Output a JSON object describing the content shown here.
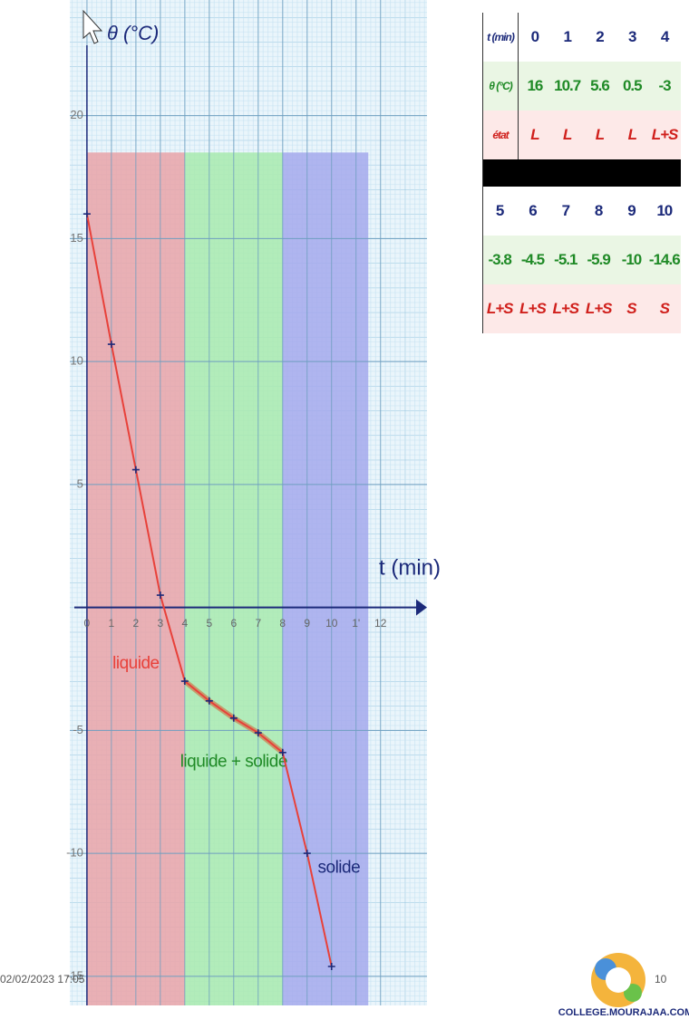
{
  "chart_data": {
    "type": "line",
    "y_label": "θ (°C)",
    "x_label": "t (min)",
    "x": [
      0,
      1,
      2,
      3,
      4,
      5,
      6,
      7,
      8,
      9,
      10
    ],
    "values": [
      16,
      10.7,
      5.6,
      0.5,
      -3,
      -3.8,
      -4.5,
      -5.1,
      -5.9,
      -10,
      -14.6
    ],
    "line_color": "#e8413a",
    "xlim": [
      -0.7,
      13.9
    ],
    "ylim": [
      -16,
      24.7
    ],
    "xticks": [
      0,
      1,
      2,
      3,
      4,
      5,
      6,
      7,
      8,
      9,
      10,
      {
        "value": 11,
        "label": "1'"
      },
      12
    ],
    "yticks": [
      -15,
      -10,
      -5,
      5,
      10,
      15,
      20
    ],
    "grid": true,
    "region_top": 18.5,
    "regions": [
      {
        "label": "liquide",
        "from": 0,
        "to": 4,
        "color": "#e9a3a8",
        "text_color": "#e8413a"
      },
      {
        "label": "liquide + solide",
        "from": 4,
        "to": 8,
        "color": "#a8eaae",
        "text_color": "#1f8a26"
      },
      {
        "label": "solide",
        "from": 8,
        "to": 11.5,
        "color": "#a4a9ec",
        "text_color": "#1c2a7a"
      }
    ]
  },
  "table": {
    "rows": [
      [
        "t (min)",
        0,
        1,
        2,
        3,
        4
      ],
      [
        "θ (°C)",
        16,
        10.7,
        5.6,
        0.5,
        -3
      ],
      [
        "état",
        "L",
        "L",
        "L",
        "L",
        "L+S"
      ],
      [
        5,
        6,
        7,
        8,
        9,
        10
      ],
      [
        -3.8,
        -4.5,
        -5.1,
        -5.9,
        -10,
        -14.6
      ],
      [
        "L+S",
        "L+S",
        "L+S",
        "L+S",
        "S",
        "S"
      ]
    ]
  },
  "footer": {
    "date": "02/02/2023 17:05",
    "page": "10",
    "site": "COLLEGE.MOURAJAA.COM"
  }
}
